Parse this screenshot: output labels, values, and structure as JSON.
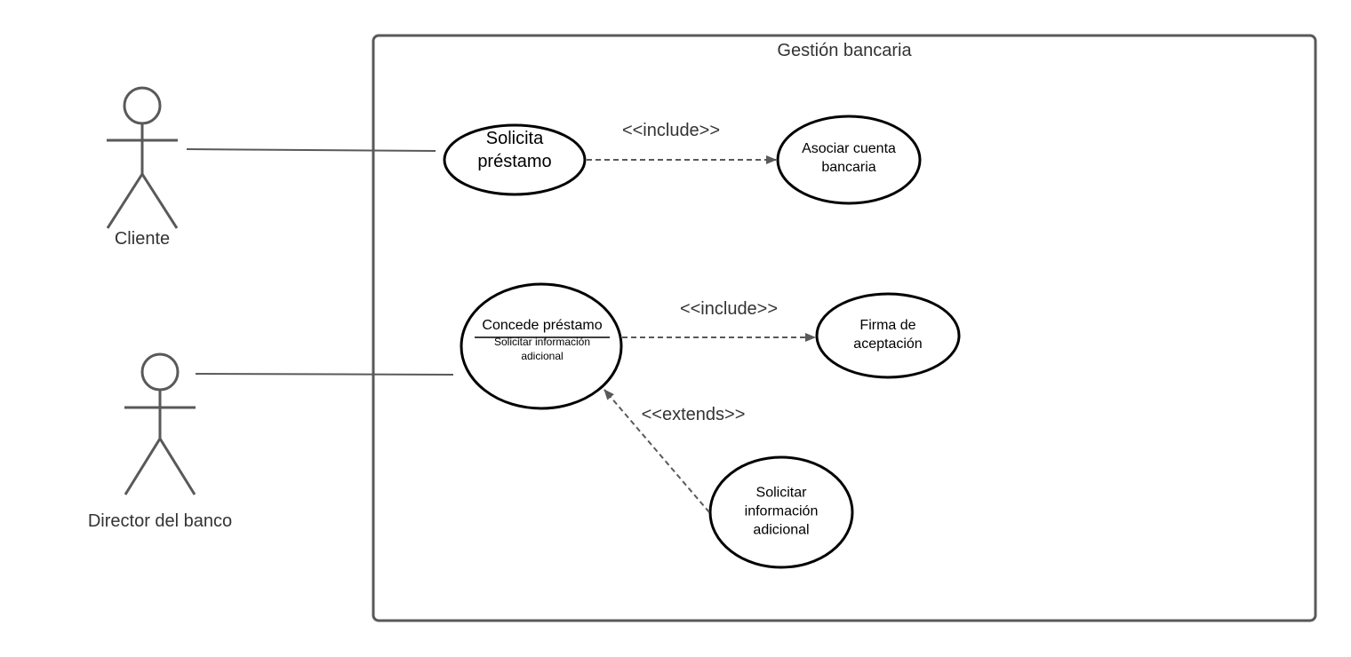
{
  "system": {
    "title": "Gestión bancaria"
  },
  "actors": [
    {
      "name": "Cliente"
    },
    {
      "name": "Director del banco"
    }
  ],
  "use_cases": [
    {
      "lines": [
        "Solicita",
        "préstamo"
      ]
    },
    {
      "lines": [
        "Asociar cuenta",
        "bancaria"
      ]
    },
    {
      "title": "Concede préstamo",
      "extension_point": [
        "Solicitar información",
        "adicional"
      ]
    },
    {
      "lines": [
        "Firma de",
        "aceptación"
      ]
    },
    {
      "lines": [
        "Solicitar",
        "información",
        "adicional"
      ]
    }
  ],
  "relations": [
    {
      "stereotype": "<<include>>"
    },
    {
      "stereotype": "<<include>>"
    },
    {
      "stereotype": "<<extends>>"
    }
  ],
  "colors": {
    "stroke": "#595959",
    "text": "#333333",
    "usecase_text": "#000000",
    "background": "#ffffff"
  }
}
